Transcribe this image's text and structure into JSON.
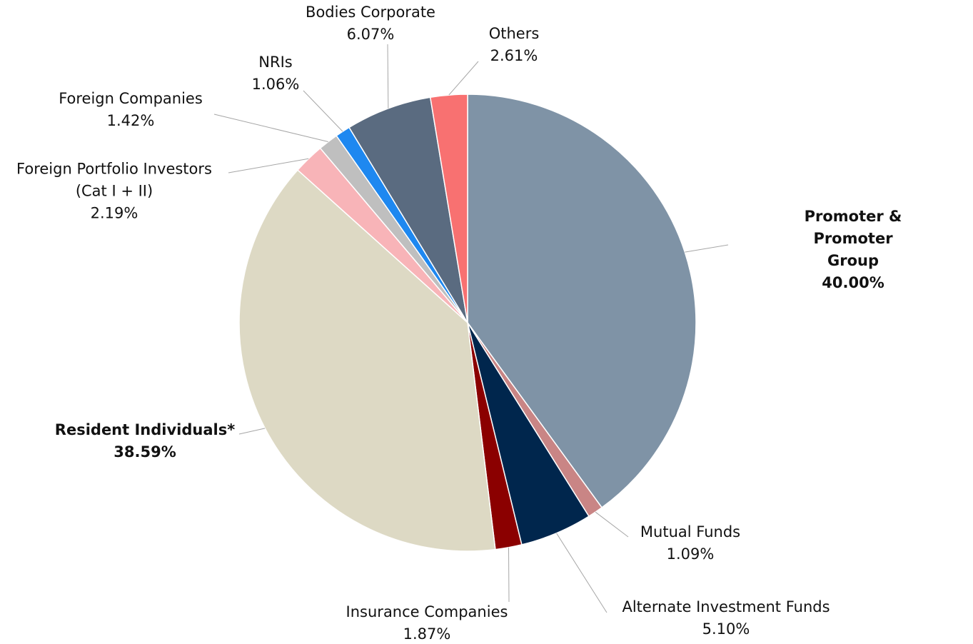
{
  "chart_data": {
    "type": "pie",
    "categories": [
      "Promoter & Promoter Group",
      "Mutual Funds",
      "Alternate Investment Funds",
      "Insurance Companies",
      "Resident Individuals*",
      "Foreign Portfolio Investors\n(Cat I + II)",
      "Foreign Companies",
      "NRIs",
      "Bodies Corporate",
      "Others"
    ],
    "values": [
      40.0,
      1.09,
      5.1,
      1.87,
      38.59,
      2.19,
      1.42,
      1.06,
      6.07,
      2.61
    ],
    "value_labels": [
      "40.00%",
      "1.09%",
      "5.10%",
      "1.87%",
      "38.59%",
      "2.19%",
      "1.42%",
      "1.06%",
      "6.07%",
      "2.61%"
    ],
    "colors": [
      "#7f93a6",
      "#c98585",
      "#00264d",
      "#8b0000",
      "#ddd9c4",
      "#f8b4b8",
      "#bfbfbf",
      "#1e88f0",
      "#5a6b80",
      "#f87171"
    ]
  }
}
